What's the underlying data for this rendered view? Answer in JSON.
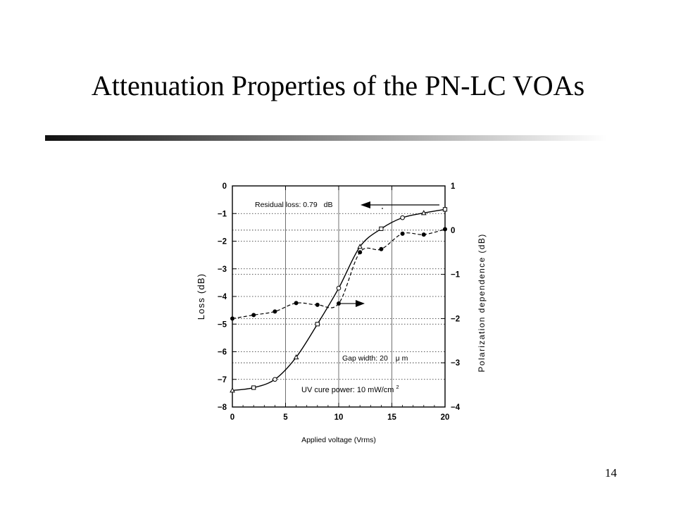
{
  "slide": {
    "title": "Attenuation Properties of the PN-LC VOAs",
    "page_number": "14",
    "rule_gradient": [
      "#111111",
      "#ffffff"
    ]
  },
  "chart_data": {
    "type": "line",
    "title": "",
    "xlabel": "Applied voltage (Vrms)",
    "ylabel": "Loss (dB)",
    "y2label": "Polarization dependence (dB)",
    "xlim": [
      0,
      20
    ],
    "ylim": [
      -8,
      0
    ],
    "y2lim": [
      -4,
      1
    ],
    "x_ticks": [
      0,
      5,
      10,
      15,
      20
    ],
    "x_tick_labels": [
      "0",
      "5",
      "10",
      "15",
      "20"
    ],
    "y_ticks": [
      0,
      -1,
      -2,
      -3,
      -4,
      -5,
      -6,
      -7,
      -8
    ],
    "y_tick_labels": [
      "0",
      "−1",
      "−2",
      "−3",
      "−4",
      "−5",
      "−6",
      "−7",
      "−8"
    ],
    "y2_ticks": [
      1,
      0,
      -1,
      -2,
      -3,
      -4
    ],
    "y2_tick_labels": [
      "1",
      "0",
      "−1",
      "−2",
      "−3",
      "−4"
    ],
    "grid": "dotted",
    "series": [
      {
        "axis": "left",
        "style": "solid",
        "marker": "mixed-open",
        "x": [
          0,
          2,
          4,
          6,
          8,
          10,
          12,
          14,
          16,
          18,
          20
        ],
        "y": [
          -7.4,
          -7.3,
          -7.0,
          -6.2,
          -5.0,
          -3.7,
          -2.2,
          -1.55,
          -1.15,
          -0.98,
          -0.85
        ]
      },
      {
        "axis": "right",
        "style": "dashed",
        "marker": "filled-circle",
        "x": [
          0,
          2,
          4,
          6,
          8,
          10,
          12,
          14,
          16,
          18,
          20
        ],
        "y": [
          -2.0,
          -1.92,
          -1.84,
          -1.65,
          -1.69,
          -1.66,
          -0.5,
          -0.43,
          -0.08,
          -0.1,
          0.02
        ]
      }
    ],
    "annotations": {
      "residual": {
        "prefix": "Residual loss: 0.79",
        "unit": "dB"
      },
      "gap": {
        "prefix": "Gap width: 20",
        "unit": "μ m"
      },
      "uv": {
        "prefix": "UV cure power: 10 mW/cm",
        "sup": "2"
      }
    }
  }
}
